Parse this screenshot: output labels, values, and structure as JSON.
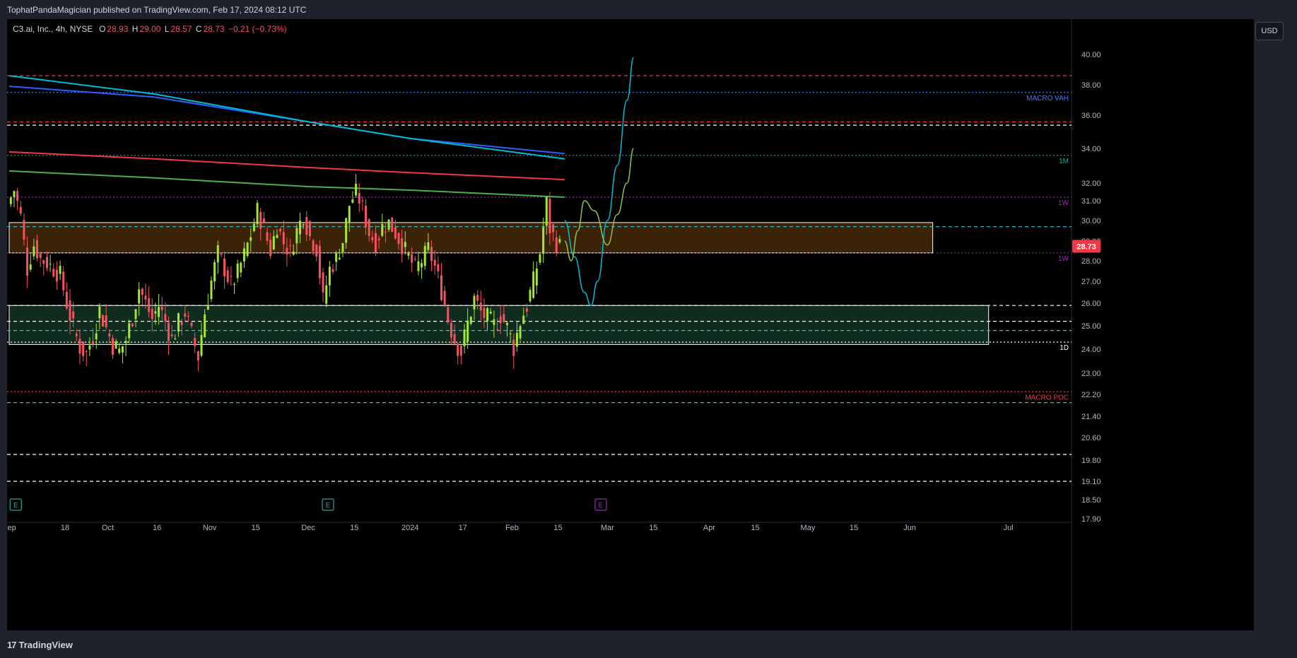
{
  "header": {
    "published_text": "TophatPandaMagician published on TradingView.com, Feb 17, 2024 08:12 UTC"
  },
  "legend": {
    "symbol": "C3.ai, Inc., 4h, NYSE",
    "open_label": "O",
    "open": "28.93",
    "high_label": "H",
    "high": "29.00",
    "low_label": "L",
    "low": "28.57",
    "close_label": "C",
    "close": "28.73",
    "change": "−0.21 (−0.73%)"
  },
  "toolbar": {
    "currency": "USD"
  },
  "footer": {
    "brand": "TradingView",
    "logo_mark": "17"
  },
  "colors": {
    "background": "#000000",
    "up": "#a3e635",
    "down": "#f7525f",
    "last_price": "#f23645",
    "vah": "#3d7dff",
    "poc": "#f23645",
    "level_1w": "#9c27b0",
    "level_1m": "#26a69a",
    "zone_upper_fill": "#3b2307",
    "zone_lower_fill": "#0f2c1e"
  },
  "chart_data": {
    "type": "candlestick",
    "symbol": "C3.ai, Inc.",
    "interval": "4h",
    "exchange": "NYSE",
    "ylim": [
      17.9,
      40.0
    ],
    "price_axis": [
      "40.00",
      "38.00",
      "36.00",
      "34.00",
      "32.00",
      "31.00",
      "30.00",
      "29.00",
      "28.00",
      "27.00",
      "26.00",
      "25.00",
      "24.00",
      "23.00",
      "22.20",
      "21.40",
      "20.60",
      "19.80",
      "19.10",
      "18.50",
      "17.90"
    ],
    "time_axis": [
      {
        "label": "Sep",
        "date": "2023-09-01"
      },
      {
        "label": "18",
        "date": "2023-09-18"
      },
      {
        "label": "Oct",
        "date": "2023-10-01"
      },
      {
        "label": "16",
        "date": "2023-10-16"
      },
      {
        "label": "Nov",
        "date": "2023-11-01"
      },
      {
        "label": "15",
        "date": "2023-11-15"
      },
      {
        "label": "Dec",
        "date": "2023-12-01"
      },
      {
        "label": "15",
        "date": "2023-12-15"
      },
      {
        "label": "2024",
        "date": "2024-01-01"
      },
      {
        "label": "17",
        "date": "2024-01-17"
      },
      {
        "label": "Feb",
        "date": "2024-02-01"
      },
      {
        "label": "15",
        "date": "2024-02-15"
      },
      {
        "label": "Mar",
        "date": "2024-03-01"
      },
      {
        "label": "15",
        "date": "2024-03-15"
      },
      {
        "label": "Apr",
        "date": "2024-04-01"
      },
      {
        "label": "15",
        "date": "2024-04-15"
      },
      {
        "label": "May",
        "date": "2024-05-01"
      },
      {
        "label": "15",
        "date": "2024-05-15"
      },
      {
        "label": "Jun",
        "date": "2024-06-01"
      },
      {
        "label": "Jul",
        "date": "2024-07-01"
      }
    ],
    "last_price": "28.73",
    "price_path": [
      [
        "2023-09-01",
        30.8
      ],
      [
        "2023-09-03",
        31.6
      ],
      [
        "2023-09-05",
        30.2
      ],
      [
        "2023-09-07",
        27.6
      ],
      [
        "2023-09-09",
        28.8
      ],
      [
        "2023-09-11",
        28.1
      ],
      [
        "2023-09-13",
        27.9
      ],
      [
        "2023-09-15",
        27.6
      ],
      [
        "2023-09-17",
        27.3
      ],
      [
        "2023-09-19",
        26.0
      ],
      [
        "2023-09-21",
        24.9
      ],
      [
        "2023-09-23",
        24.1
      ],
      [
        "2023-09-25",
        23.8
      ],
      [
        "2023-09-27",
        24.6
      ],
      [
        "2023-09-29",
        25.7
      ],
      [
        "2023-10-01",
        24.9
      ],
      [
        "2023-10-03",
        24.2
      ],
      [
        "2023-10-05",
        23.9
      ],
      [
        "2023-10-07",
        24.4
      ],
      [
        "2023-10-09",
        25.4
      ],
      [
        "2023-10-11",
        26.7
      ],
      [
        "2023-10-13",
        26.0
      ],
      [
        "2023-10-15",
        25.3
      ],
      [
        "2023-10-17",
        25.9
      ],
      [
        "2023-10-19",
        25.2
      ],
      [
        "2023-10-21",
        24.4
      ],
      [
        "2023-10-23",
        25.1
      ],
      [
        "2023-10-25",
        25.6
      ],
      [
        "2023-10-27",
        24.6
      ],
      [
        "2023-10-29",
        23.7
      ],
      [
        "2023-10-31",
        25.6
      ],
      [
        "2023-11-02",
        27.0
      ],
      [
        "2023-11-04",
        28.4
      ],
      [
        "2023-11-06",
        27.6
      ],
      [
        "2023-11-08",
        26.8
      ],
      [
        "2023-11-10",
        27.4
      ],
      [
        "2023-11-12",
        28.3
      ],
      [
        "2023-11-14",
        29.3
      ],
      [
        "2023-11-16",
        30.5
      ],
      [
        "2023-11-18",
        29.6
      ],
      [
        "2023-11-20",
        28.5
      ],
      [
        "2023-11-22",
        29.8
      ],
      [
        "2023-11-24",
        28.9
      ],
      [
        "2023-11-26",
        28.4
      ],
      [
        "2023-11-28",
        29.5
      ],
      [
        "2023-11-30",
        30.3
      ],
      [
        "2023-12-02",
        29.2
      ],
      [
        "2023-12-04",
        28.6
      ],
      [
        "2023-12-06",
        26.1
      ],
      [
        "2023-12-08",
        27.6
      ],
      [
        "2023-12-10",
        28.1
      ],
      [
        "2023-12-12",
        29.0
      ],
      [
        "2023-12-14",
        30.8
      ],
      [
        "2023-12-16",
        31.5
      ],
      [
        "2023-12-18",
        30.6
      ],
      [
        "2023-12-20",
        29.4
      ],
      [
        "2023-12-22",
        28.9
      ],
      [
        "2023-12-24",
        29.7
      ],
      [
        "2023-12-26",
        29.9
      ],
      [
        "2023-12-28",
        29.4
      ],
      [
        "2023-12-30",
        28.8
      ],
      [
        "2024-01-01",
        28.2
      ],
      [
        "2024-01-03",
        27.6
      ],
      [
        "2024-01-05",
        28.0
      ],
      [
        "2024-01-07",
        28.6
      ],
      [
        "2024-01-09",
        27.7
      ],
      [
        "2024-01-11",
        26.6
      ],
      [
        "2024-01-13",
        25.3
      ],
      [
        "2024-01-15",
        24.4
      ],
      [
        "2024-01-17",
        23.9
      ],
      [
        "2024-01-19",
        25.1
      ],
      [
        "2024-01-21",
        26.2
      ],
      [
        "2024-01-23",
        25.6
      ],
      [
        "2024-01-25",
        25.3
      ],
      [
        "2024-01-27",
        25.0
      ],
      [
        "2024-01-29",
        25.5
      ],
      [
        "2024-01-31",
        24.9
      ],
      [
        "2024-02-02",
        24.1
      ],
      [
        "2024-02-04",
        25.2
      ],
      [
        "2024-02-06",
        25.9
      ],
      [
        "2024-02-08",
        27.0
      ],
      [
        "2024-02-10",
        28.4
      ],
      [
        "2024-02-12",
        30.9
      ],
      [
        "2024-02-13",
        29.6
      ],
      [
        "2024-02-15",
        28.9
      ],
      [
        "2024-02-16",
        28.73
      ]
    ],
    "moving_averages": [
      {
        "color": "#2962ff",
        "points": [
          [
            "2023-09-01",
            37.9
          ],
          [
            "2023-10-15",
            37.2
          ],
          [
            "2023-12-01",
            35.6
          ],
          [
            "2024-01-01",
            34.6
          ],
          [
            "2024-02-17",
            33.7
          ]
        ]
      },
      {
        "color": "#00bcd4",
        "points": [
          [
            "2023-09-01",
            38.6
          ],
          [
            "2023-10-15",
            37.4
          ],
          [
            "2023-12-01",
            35.6
          ],
          [
            "2024-01-01",
            34.6
          ],
          [
            "2024-02-17",
            33.4
          ]
        ]
      },
      {
        "color": "#f23645",
        "points": [
          [
            "2023-09-01",
            33.8
          ],
          [
            "2023-10-15",
            33.4
          ],
          [
            "2023-12-01",
            32.9
          ],
          [
            "2024-01-01",
            32.6
          ],
          [
            "2024-02-17",
            32.2
          ]
        ]
      },
      {
        "color": "#4caf50",
        "points": [
          [
            "2023-09-01",
            32.7
          ],
          [
            "2023-10-15",
            32.3
          ],
          [
            "2023-12-01",
            31.8
          ],
          [
            "2024-01-01",
            31.6
          ],
          [
            "2024-02-17",
            31.2
          ]
        ]
      }
    ],
    "levels": [
      {
        "price": 38.6,
        "color": "#f23645",
        "style": "dashed",
        "label": ""
      },
      {
        "price": 37.5,
        "color": "#3d7dff",
        "style": "dotted",
        "label": "MACRO VAH"
      },
      {
        "price": 35.6,
        "color": "#f23645",
        "style": "dashed",
        "label": ""
      },
      {
        "price": 35.4,
        "color": "#ffffff",
        "style": "dashed",
        "label": ""
      },
      {
        "price": 33.6,
        "color": "#26a69a",
        "style": "dotted",
        "label": "1M"
      },
      {
        "price": 31.2,
        "color": "#9c27b0",
        "style": "dotted",
        "label": "1W"
      },
      {
        "price": 29.7,
        "color": "#26c6da",
        "style": "dashed",
        "label": ""
      },
      {
        "price": 28.4,
        "color": "#9c27b0",
        "style": "dotted",
        "label": "1W"
      },
      {
        "price": 25.9,
        "color": "#ffffff",
        "style": "dashed",
        "label": ""
      },
      {
        "price": 25.2,
        "color": "#ffffff",
        "style": "dashed",
        "label": ""
      },
      {
        "price": 24.8,
        "color": "#26c6da",
        "style": "dashed",
        "label": ""
      },
      {
        "price": 24.3,
        "color": "#ffffff",
        "style": "dotted",
        "label": "1D"
      },
      {
        "price": 22.3,
        "color": "#f23645",
        "style": "dotted",
        "label": "MACRO POC"
      },
      {
        "price": 21.9,
        "color": "#26c6da",
        "style": "dashed",
        "label": ""
      },
      {
        "price": 20.0,
        "color": "#ffffff",
        "style": "dashed",
        "label": ""
      },
      {
        "price": 19.1,
        "color": "#ffffff",
        "style": "dashed",
        "label": ""
      }
    ],
    "zones": [
      {
        "from": "2023-09-01",
        "to": "2024-06-08",
        "top": 29.9,
        "bottom": 28.4,
        "fill": "#3b2307"
      },
      {
        "from": "2023-09-01",
        "to": "2024-06-25",
        "top": 25.9,
        "bottom": 24.2,
        "fill": "#0f2c1e"
      }
    ],
    "projections": [
      {
        "color": "#00bcd4",
        "points": [
          [
            "2024-02-17",
            30.0
          ],
          [
            "2024-02-20",
            28.2
          ],
          [
            "2024-02-23",
            26.5
          ],
          [
            "2024-02-25",
            25.9
          ],
          [
            "2024-02-27",
            27.0
          ],
          [
            "2024-03-01",
            30.0
          ],
          [
            "2024-03-04",
            33.0
          ],
          [
            "2024-03-07",
            37.0
          ],
          [
            "2024-03-09",
            39.8
          ]
        ]
      },
      {
        "color": "#8bc34a",
        "points": [
          [
            "2024-02-17",
            29.0
          ],
          [
            "2024-02-19",
            28.0
          ],
          [
            "2024-02-21",
            29.5
          ],
          [
            "2024-02-23",
            31.0
          ],
          [
            "2024-02-26",
            30.5
          ],
          [
            "2024-03-01",
            28.8
          ],
          [
            "2024-03-04",
            30.3
          ],
          [
            "2024-03-07",
            32.0
          ],
          [
            "2024-03-09",
            34.0
          ]
        ]
      }
    ],
    "events": [
      {
        "label": "E",
        "date": "2023-09-03",
        "color": "#26a69a"
      },
      {
        "label": "E",
        "date": "2023-12-07",
        "color": "#26a69a"
      },
      {
        "label": "E",
        "date": "2024-02-28",
        "color": "#9c27b0"
      }
    ]
  }
}
